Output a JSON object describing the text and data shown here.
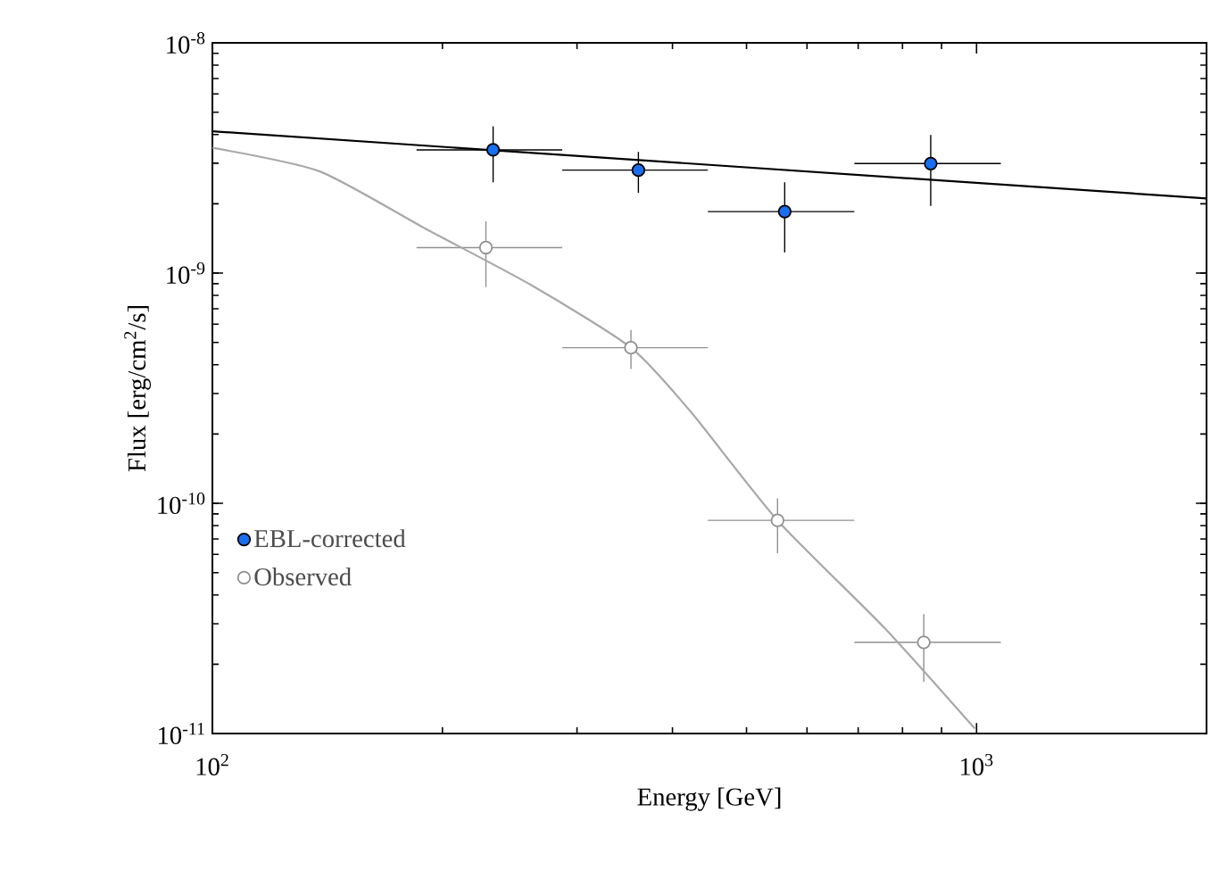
{
  "chart_data": {
    "type": "scatter",
    "xlabel": "Energy [GeV]",
    "ylabel": "Flux [erg/cm$^{2}$/s]",
    "log": "xy",
    "xlim": [
      100,
      2000
    ],
    "ylim": [
      1e-11,
      1e-08
    ],
    "xticks": [
      {
        "value": 100,
        "label": "10$^{2}$"
      },
      {
        "value": 1000,
        "label": "10$^{3}$"
      }
    ],
    "yticks": [
      {
        "value": 1e-11,
        "label": "10$^{-11}$"
      },
      {
        "value": 1e-10,
        "label": "10$^{-10}$"
      },
      {
        "value": 1e-09,
        "label": "10$^{-9}$"
      },
      {
        "value": 1e-08,
        "label": "10$^{-8}$"
      }
    ],
    "legend": "bottom left",
    "series": [
      {
        "name": "EBL-corrected",
        "color": "#1a6ef0",
        "marker": "circle",
        "x": [
          233,
          361,
          561,
          871
        ],
        "values": [
          3.43e-09,
          2.8e-09,
          1.85e-09,
          2.99e-09
        ],
        "errors": [
          [
            2.48e-09,
            4.34e-09
          ],
          [
            2.23e-09,
            3.36e-09
          ],
          [
            1.23e-09,
            2.48e-09
          ],
          [
            1.96e-09,
            3.98e-09
          ]
        ],
        "xerrors": [
          [
            185,
            287
          ],
          [
            287,
            445
          ],
          [
            445,
            692
          ],
          [
            692,
            1076
          ]
        ]
      },
      {
        "name": "Observed",
        "color": "#909090",
        "marker": "circle",
        "x": [
          228,
          353,
          549,
          853
        ],
        "values": [
          1.29e-09,
          4.74e-10,
          8.43e-11,
          2.49e-11
        ],
        "errors": [
          [
            8.7e-10,
            1.68e-09
          ],
          [
            3.83e-10,
            5.66e-10
          ],
          [
            6.07e-11,
            1.05e-10
          ],
          [
            1.68e-11,
            3.3e-11
          ]
        ],
        "xerrors": [
          [
            185,
            287
          ],
          [
            287,
            445
          ],
          [
            445,
            692
          ],
          [
            692,
            1076
          ]
        ]
      },
      {
        "type": "line",
        "color": "#000000",
        "line_style": "solid",
        "marker": "none",
        "x": [
          100,
          2000
        ],
        "values": [
          4.13e-09,
          2.11e-09
        ]
      },
      {
        "type": "line",
        "color": "#a8a8a8",
        "line_style": "solid",
        "marker": "none",
        "x": [
          100,
          138,
          190,
          262,
          353,
          423,
          549,
          759,
          995
        ],
        "values": [
          3.5e-09,
          2.77e-09,
          1.56e-09,
          8.83e-10,
          4.74e-10,
          2.49e-10,
          8.43e-11,
          2.86e-11,
          1.05e-11
        ]
      }
    ]
  }
}
